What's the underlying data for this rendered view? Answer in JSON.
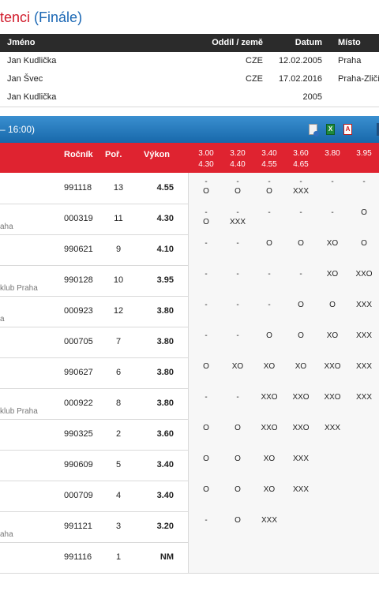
{
  "title": {
    "main": "tenci",
    "sub": "(Finále)"
  },
  "records": {
    "headers": {
      "name": "Jméno",
      "club": "Oddíl / země",
      "date": "Datum",
      "place": "Místo"
    },
    "rows": [
      {
        "name": "Jan Kudlička",
        "club": "CZE",
        "date": "12.02.2005",
        "place": "Praha"
      },
      {
        "name": "Jan Švec",
        "club": "CZE",
        "date": "17.02.2016",
        "place": "Praha-Zličí"
      },
      {
        "name": "Jan Kudlička",
        "club": "",
        "date": "2005",
        "place": ""
      }
    ]
  },
  "session": {
    "time": " – 16:00)",
    "icons": [
      "document-info-icon",
      "excel-icon",
      "pdf-icon"
    ]
  },
  "results": {
    "headers": {
      "born": "Ročník",
      "order": "Poř.",
      "perf": "Výkon"
    },
    "heights": [
      {
        "top": "3.00",
        "bottom": "4.30"
      },
      {
        "top": "3.20",
        "bottom": "4.40"
      },
      {
        "top": "3.40",
        "bottom": "4.55"
      },
      {
        "top": "3.60",
        "bottom": "4.65"
      },
      {
        "top": "3.80",
        "bottom": ""
      },
      {
        "top": "3.95",
        "bottom": ""
      }
    ],
    "rows": [
      {
        "club": "",
        "born": "991118",
        "order": "13",
        "perf": "4.55",
        "att": [
          [
            "-",
            "O"
          ],
          [
            "-",
            "O"
          ],
          [
            "-",
            "O"
          ],
          [
            "-",
            "XXX"
          ],
          [
            "-",
            ""
          ],
          [
            "-",
            ""
          ]
        ]
      },
      {
        "club": "aha",
        "born": "000319",
        "order": "11",
        "perf": "4.30",
        "att": [
          [
            "-",
            "O"
          ],
          [
            "-",
            "XXX"
          ],
          [
            "-",
            ""
          ],
          [
            "-",
            ""
          ],
          [
            "-",
            ""
          ],
          [
            "O",
            ""
          ]
        ]
      },
      {
        "club": "",
        "born": "990621",
        "order": "9",
        "perf": "4.10",
        "att": [
          [
            "-",
            ""
          ],
          [
            "-",
            ""
          ],
          [
            "O",
            ""
          ],
          [
            "O",
            ""
          ],
          [
            "XO",
            ""
          ],
          [
            "O",
            ""
          ]
        ]
      },
      {
        "club": "klub Praha",
        "born": "990128",
        "order": "10",
        "perf": "3.95",
        "att": [
          [
            "-",
            ""
          ],
          [
            "-",
            ""
          ],
          [
            "-",
            ""
          ],
          [
            "-",
            ""
          ],
          [
            "XO",
            ""
          ],
          [
            "XXO",
            ""
          ]
        ]
      },
      {
        "club": "a",
        "born": "000923",
        "order": "12",
        "perf": "3.80",
        "att": [
          [
            "-",
            ""
          ],
          [
            "-",
            ""
          ],
          [
            "-",
            ""
          ],
          [
            "O",
            ""
          ],
          [
            "O",
            ""
          ],
          [
            "XXX",
            ""
          ]
        ]
      },
      {
        "club": "",
        "born": "000705",
        "order": "7",
        "perf": "3.80",
        "att": [
          [
            "-",
            ""
          ],
          [
            "-",
            ""
          ],
          [
            "O",
            ""
          ],
          [
            "O",
            ""
          ],
          [
            "XO",
            ""
          ],
          [
            "XXX",
            ""
          ]
        ]
      },
      {
        "club": "",
        "born": "990627",
        "order": "6",
        "perf": "3.80",
        "att": [
          [
            "O",
            ""
          ],
          [
            "XO",
            ""
          ],
          [
            "XO",
            ""
          ],
          [
            "XO",
            ""
          ],
          [
            "XXO",
            ""
          ],
          [
            "XXX",
            ""
          ]
        ]
      },
      {
        "club": "klub Praha",
        "born": "000922",
        "order": "8",
        "perf": "3.80",
        "att": [
          [
            "-",
            ""
          ],
          [
            "-",
            ""
          ],
          [
            "XXO",
            ""
          ],
          [
            "XXO",
            ""
          ],
          [
            "XXO",
            ""
          ],
          [
            "XXX",
            ""
          ]
        ]
      },
      {
        "club": "",
        "born": "990325",
        "order": "2",
        "perf": "3.60",
        "att": [
          [
            "O",
            ""
          ],
          [
            "O",
            ""
          ],
          [
            "XXO",
            ""
          ],
          [
            "XXO",
            ""
          ],
          [
            "XXX",
            ""
          ],
          [
            "",
            ""
          ]
        ]
      },
      {
        "club": "",
        "born": "990609",
        "order": "5",
        "perf": "3.40",
        "att": [
          [
            "O",
            ""
          ],
          [
            "O",
            ""
          ],
          [
            "XO",
            ""
          ],
          [
            "XXX",
            ""
          ],
          [
            "",
            ""
          ],
          [
            "",
            ""
          ]
        ]
      },
      {
        "club": "",
        "born": "000709",
        "order": "4",
        "perf": "3.40",
        "att": [
          [
            "O",
            ""
          ],
          [
            "O",
            ""
          ],
          [
            "XO",
            ""
          ],
          [
            "XXX",
            ""
          ],
          [
            "",
            ""
          ],
          [
            "",
            ""
          ]
        ]
      },
      {
        "club": "aha",
        "born": "991121",
        "order": "3",
        "perf": "3.20",
        "att": [
          [
            "-",
            ""
          ],
          [
            "O",
            ""
          ],
          [
            "XXX",
            ""
          ],
          [
            "",
            ""
          ],
          [
            "",
            ""
          ],
          [
            "",
            ""
          ]
        ]
      },
      {
        "club": "",
        "born": "991116",
        "order": "1",
        "perf": "NM",
        "att": [
          [
            "",
            ""
          ],
          [
            "",
            ""
          ],
          [
            "",
            ""
          ],
          [
            "",
            ""
          ],
          [
            "",
            ""
          ],
          [
            "",
            ""
          ]
        ]
      }
    ]
  }
}
